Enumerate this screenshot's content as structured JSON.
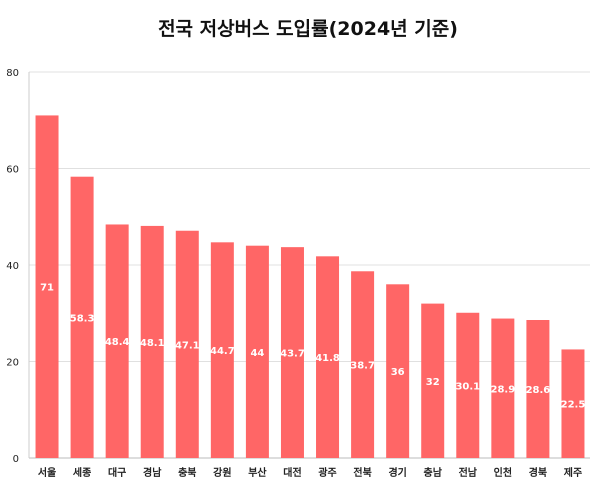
{
  "chart_data": {
    "type": "bar",
    "title": "전국 저상버스 도입률(2024년 기준)",
    "xlabel": "",
    "ylabel": "",
    "categories": [
      "서울",
      "세종",
      "대구",
      "경남",
      "충북",
      "강원",
      "부산",
      "대전",
      "광주",
      "전북",
      "경기",
      "충남",
      "전남",
      "인천",
      "경북",
      "제주"
    ],
    "values": [
      71,
      58.3,
      48.4,
      48.1,
      47.1,
      44.7,
      44,
      43.7,
      41.8,
      38.7,
      36,
      32,
      30.1,
      28.9,
      28.6,
      22.5
    ],
    "ylim": [
      0,
      80
    ],
    "yticks": [
      0,
      20,
      40,
      60,
      80
    ],
    "grid": true,
    "legend": "none",
    "bar_color": "#ff6666",
    "data_labels": "inside-center"
  }
}
